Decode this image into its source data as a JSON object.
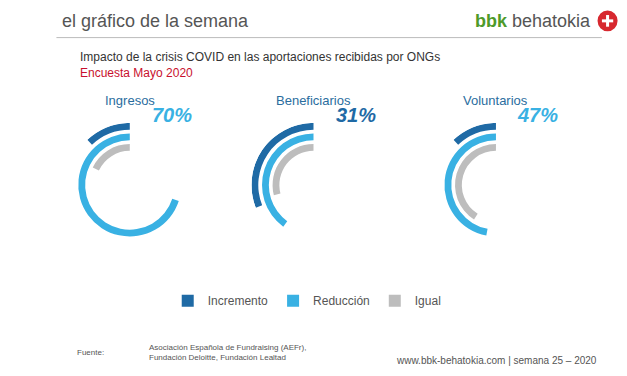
{
  "header": {
    "text": "el gráfico de la semana",
    "brand": [
      "bbk",
      "behatokia"
    ]
  },
  "chart_data": {
    "type": "radial_bar",
    "title": "Impacto de la crisis COVID en las aportaciones recibidas por ONGs",
    "subtitle": "Encuesta Mayo 2020",
    "categories": [
      "Ingresos",
      "Beneficiarios",
      "Voluntarios"
    ],
    "series": [
      {
        "name": "Incremento",
        "color": "#1f6aa5",
        "values": [
          12,
          31,
          12
        ],
        "value_labels": [
          null,
          "31%",
          null
        ]
      },
      {
        "name": "Reducción",
        "color": "#39b1e3",
        "values": [
          70,
          40,
          47
        ],
        "value_labels": [
          "70%",
          null,
          "47%"
        ]
      },
      {
        "name": "Igual",
        "color": "#bdbdbd",
        "values": [
          18,
          29,
          41
        ],
        "value_labels": [
          null,
          null,
          null
        ]
      }
    ],
    "legend": "bottom"
  },
  "footer": {
    "source_label": "Fuente:",
    "source": [
      "Asociación Española de Fundraising (AEFr),",
      "Fundación Deloitte, Fundación Lealtad"
    ],
    "url": "www.bbk-behatokia.com | semana 25 – 2020"
  }
}
